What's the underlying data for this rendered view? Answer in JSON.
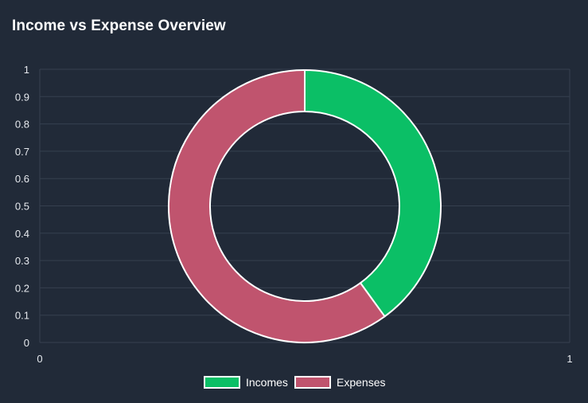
{
  "card": {
    "title": "Income vs Expense Overview"
  },
  "chart_data": {
    "type": "doughnut",
    "title": "Income vs Expense Overview",
    "categories": [
      "Incomes",
      "Expenses"
    ],
    "values": [
      40,
      60
    ],
    "colors": [
      "#0bbf66",
      "#c0546e"
    ],
    "border_color": "#ffffff",
    "grid": true,
    "legend_position": "bottom",
    "y_ticks": [
      "0",
      "0.1",
      "0.2",
      "0.3",
      "0.4",
      "0.5",
      "0.6",
      "0.7",
      "0.8",
      "0.9",
      "1"
    ],
    "x_ticks": [
      "0",
      "1"
    ],
    "ylim": [
      0,
      1
    ],
    "xlim": [
      0,
      1
    ]
  }
}
